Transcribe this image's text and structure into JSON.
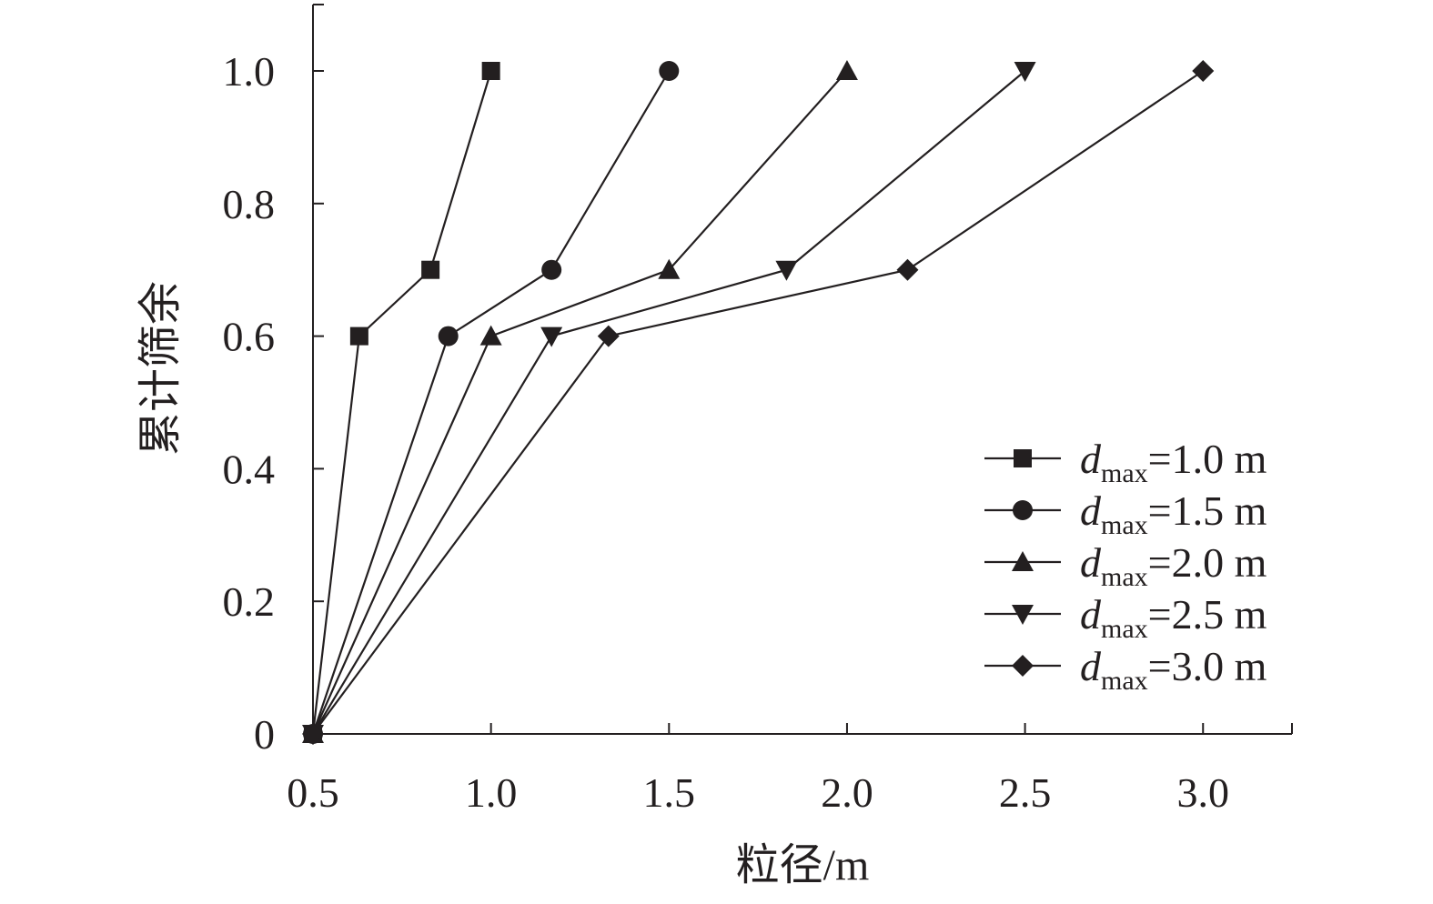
{
  "chart_data": {
    "type": "line",
    "title": "",
    "xlabel": "粒径/m",
    "ylabel": "累计筛余",
    "xlim": [
      0.5,
      3.25
    ],
    "ylim": [
      0,
      1.1
    ],
    "xticks": [
      0.5,
      1.0,
      1.5,
      2.0,
      2.5,
      3.0
    ],
    "xtick_labels": [
      "0.5",
      "1.0",
      "1.5",
      "2.0",
      "2.5",
      "3.0"
    ],
    "yticks": [
      0,
      0.2,
      0.4,
      0.6,
      0.8,
      1.0
    ],
    "ytick_labels": [
      "0",
      "0.2",
      "0.4",
      "0.6",
      "0.8",
      "1.0"
    ],
    "grid": false,
    "legend_position": "bottom-right",
    "series": [
      {
        "label_var": "d",
        "label_sub": "max",
        "label_rest": "=1.0 m",
        "marker": "square",
        "x": [
          0.5,
          0.63,
          0.83,
          1.0
        ],
        "y": [
          0,
          0.6,
          0.7,
          1.0
        ]
      },
      {
        "label_var": "d",
        "label_sub": "max",
        "label_rest": "=1.5 m",
        "marker": "circle",
        "x": [
          0.5,
          0.88,
          1.17,
          1.5
        ],
        "y": [
          0,
          0.6,
          0.7,
          1.0
        ]
      },
      {
        "label_var": "d",
        "label_sub": "max",
        "label_rest": "=2.0 m",
        "marker": "triangle-up",
        "x": [
          0.5,
          1.0,
          1.5,
          2.0
        ],
        "y": [
          0,
          0.6,
          0.7,
          1.0
        ]
      },
      {
        "label_var": "d",
        "label_sub": "max",
        "label_rest": "=2.5 m",
        "marker": "triangle-down",
        "x": [
          0.5,
          1.17,
          1.83,
          2.5
        ],
        "y": [
          0,
          0.6,
          0.7,
          1.0
        ]
      },
      {
        "label_var": "d",
        "label_sub": "max",
        "label_rest": "=3.0 m",
        "marker": "diamond",
        "x": [
          0.5,
          1.33,
          2.17,
          3.0
        ],
        "y": [
          0,
          0.6,
          0.7,
          1.0
        ]
      }
    ]
  }
}
